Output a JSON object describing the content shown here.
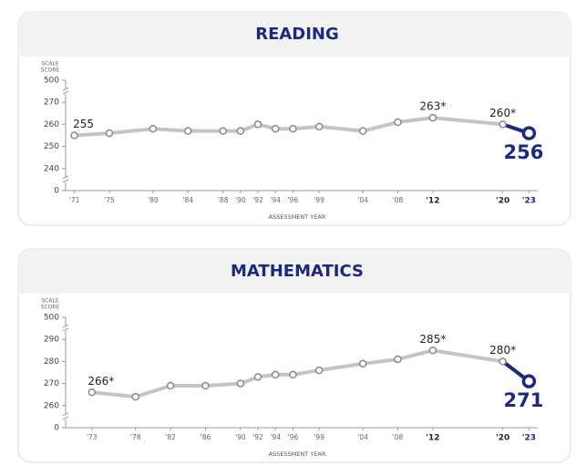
{
  "chart_data": [
    {
      "type": "line",
      "title": "READING",
      "ylabel": [
        "SCALE",
        "SCORE"
      ],
      "xlabel": "ASSESSMENT YEAR",
      "color": "#c4c4c4",
      "highlight_color": "#1b2a80",
      "x": [
        1971,
        1975,
        1980,
        1984,
        1988,
        1990,
        1992,
        1994,
        1996,
        1999,
        2004,
        2008,
        2012,
        2020,
        2023
      ],
      "values": [
        255,
        256,
        258,
        257,
        257,
        257,
        260,
        258,
        258,
        259,
        257,
        261,
        263,
        260,
        256
      ],
      "value_labels": [
        "255",
        null,
        null,
        null,
        null,
        null,
        null,
        null,
        null,
        null,
        null,
        null,
        "263*",
        "260*",
        "256"
      ],
      "xlim": [
        1970,
        2024
      ],
      "xticks": [
        {
          "value": 1971,
          "label": "'71"
        },
        {
          "value": 1975,
          "label": "'75"
        },
        {
          "value": 1980,
          "label": "'80"
        },
        {
          "value": 1984,
          "label": "'84"
        },
        {
          "value": 1988,
          "label": "'88"
        },
        {
          "value": 1990,
          "label": "'90"
        },
        {
          "value": 1992,
          "label": "'92"
        },
        {
          "value": 1994,
          "label": "'94"
        },
        {
          "value": 1996,
          "label": "'96"
        },
        {
          "value": 1999,
          "label": "'99"
        },
        {
          "value": 2004,
          "label": "'04"
        },
        {
          "value": 2008,
          "label": "'08"
        },
        {
          "value": 2012,
          "label": "'12"
        },
        {
          "value": 2020,
          "label": "'20"
        },
        {
          "value": 2023,
          "label": "'23"
        }
      ],
      "ylim": [
        0,
        500
      ],
      "yticks": [
        0,
        240,
        250,
        260,
        270,
        500
      ],
      "axis_break": true
    },
    {
      "type": "line",
      "title": "MATHEMATICS",
      "ylabel": [
        "SCALE",
        "SCORE"
      ],
      "xlabel": "ASSESSMENT YEAR",
      "color": "#c4c4c4",
      "highlight_color": "#1b2a80",
      "x": [
        1973,
        1978,
        1982,
        1986,
        1990,
        1992,
        1994,
        1996,
        1999,
        2004,
        2008,
        2012,
        2020,
        2023
      ],
      "values": [
        266,
        264,
        269,
        269,
        270,
        273,
        274,
        274,
        276,
        279,
        281,
        285,
        280,
        271
      ],
      "value_labels": [
        "266*",
        null,
        null,
        null,
        null,
        null,
        null,
        null,
        null,
        null,
        null,
        "285*",
        "280*",
        "271"
      ],
      "xlim": [
        1970,
        2024
      ],
      "xticks": [
        {
          "value": 1973,
          "label": "'73"
        },
        {
          "value": 1978,
          "label": "'78"
        },
        {
          "value": 1982,
          "label": "'82"
        },
        {
          "value": 1986,
          "label": "'86"
        },
        {
          "value": 1990,
          "label": "'90"
        },
        {
          "value": 1992,
          "label": "'92"
        },
        {
          "value": 1994,
          "label": "'94"
        },
        {
          "value": 1996,
          "label": "'96"
        },
        {
          "value": 1999,
          "label": "'99"
        },
        {
          "value": 2004,
          "label": "'04"
        },
        {
          "value": 2008,
          "label": "'08"
        },
        {
          "value": 2012,
          "label": "'12"
        },
        {
          "value": 2020,
          "label": "'20"
        },
        {
          "value": 2023,
          "label": "'23"
        }
      ],
      "ylim": [
        0,
        500
      ],
      "yticks": [
        0,
        260,
        270,
        280,
        290,
        500
      ],
      "axis_break": true
    }
  ]
}
